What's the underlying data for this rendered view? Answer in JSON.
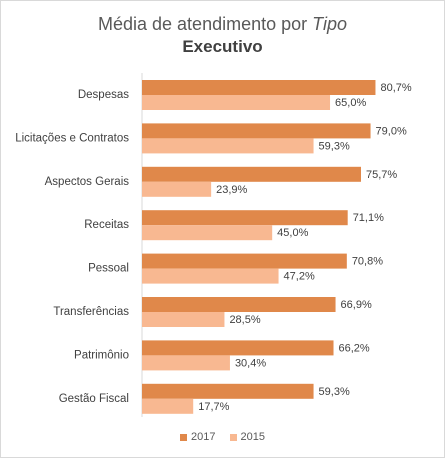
{
  "chart_data": {
    "type": "bar",
    "orientation": "horizontal",
    "title": {
      "prefix": "Média de atendimento por ",
      "emphasis": "Tipo"
    },
    "subtitle": "Executivo",
    "categories": [
      "Despesas",
      "Licitações e Contratos",
      "Aspectos Gerais",
      "Receitas",
      "Pessoal",
      "Transferências",
      "Patrimônio",
      "Gestão Fiscal"
    ],
    "series": [
      {
        "name": "2017",
        "color": "#E0884A",
        "values": [
          80.7,
          79.0,
          75.7,
          71.1,
          70.8,
          66.9,
          66.2,
          59.3
        ],
        "labels": [
          "80,7%",
          "79,0%",
          "75,7%",
          "71,1%",
          "70,8%",
          "66,9%",
          "66,2%",
          "59,3%"
        ]
      },
      {
        "name": "2015",
        "color": "#F8B891",
        "values": [
          65.0,
          59.3,
          23.9,
          45.0,
          47.2,
          28.5,
          30.4,
          17.7
        ],
        "labels": [
          "65,0%",
          "59,3%",
          "23,9%",
          "45,0%",
          "47,2%",
          "28,5%",
          "30,4%",
          "17,7%"
        ]
      }
    ],
    "xlim": [
      0,
      100
    ],
    "grid": false,
    "legend_position": "bottom"
  }
}
